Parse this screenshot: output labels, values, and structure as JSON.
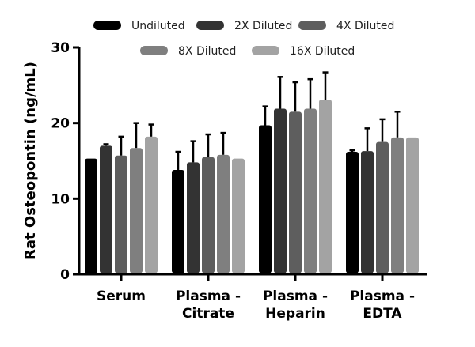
{
  "chart_data": {
    "type": "bar",
    "title": "",
    "xlabel": "",
    "ylabel": "Rat Osteopontin (ng/mL)",
    "ylim": [
      0,
      30
    ],
    "yticks": [
      0,
      10,
      20,
      30
    ],
    "categories": [
      [
        "Serum"
      ],
      [
        "Plasma -",
        "Citrate"
      ],
      [
        "Plasma -",
        "Heparin"
      ],
      [
        "Plasma -",
        "EDTA"
      ]
    ],
    "legend_position": "top",
    "grid": false,
    "series": [
      {
        "name": "Undiluted",
        "color": "#000000",
        "values": [
          15.3,
          13.8,
          19.7,
          16.2
        ],
        "error": [
          0,
          2.4,
          2.5,
          0.2
        ]
      },
      {
        "name": "2X Diluted",
        "color": "#333333",
        "values": [
          17.0,
          14.8,
          21.9,
          16.3
        ],
        "error": [
          0.2,
          2.8,
          4.2,
          3.0
        ]
      },
      {
        "name": "4X Diluted",
        "color": "#5e5e5e",
        "values": [
          15.7,
          15.5,
          21.5,
          17.5
        ],
        "error": [
          2.5,
          3.0,
          3.9,
          3.0
        ]
      },
      {
        "name": "8X Diluted",
        "color": "#7f7f7f",
        "values": [
          16.7,
          15.8,
          21.9,
          18.1
        ],
        "error": [
          3.3,
          2.9,
          3.9,
          3.4
        ]
      },
      {
        "name": "16X Diluted",
        "color": "#a3a3a3",
        "values": [
          18.2,
          15.3,
          23.1,
          18.1
        ],
        "error": [
          1.6,
          0,
          3.6,
          0
        ]
      }
    ]
  }
}
